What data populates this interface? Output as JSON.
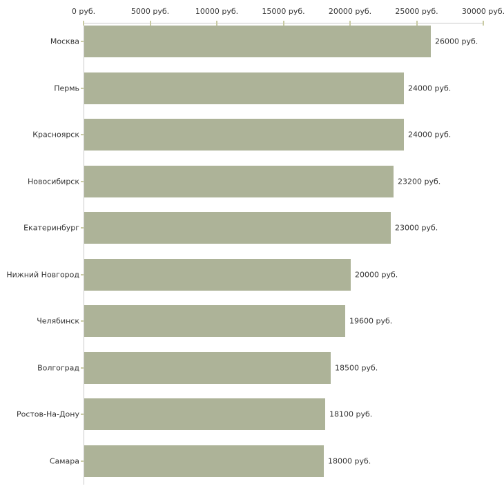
{
  "chart_data": {
    "type": "bar",
    "orientation": "horizontal",
    "title": "",
    "categories": [
      "Москва",
      "Пермь",
      "Красноярск",
      "Новосибирск",
      "Екатеринбург",
      "Нижний Новгород",
      "Челябинск",
      "Волгоград",
      "Ростов-На-Дону",
      "Самара"
    ],
    "values": [
      26000,
      24000,
      24000,
      23200,
      23000,
      20000,
      19600,
      18500,
      18100,
      18000
    ],
    "value_labels": [
      "26000 руб.",
      "24000 руб.",
      "24000 руб.",
      "23200 руб.",
      "23000 руб.",
      "20000 руб.",
      "19600 руб.",
      "18500 руб.",
      "18100 руб.",
      "18000 руб."
    ],
    "xlabel": "",
    "ylabel": "",
    "xlim": [
      0,
      30000
    ],
    "x_axis": {
      "position": "top",
      "tick_values": [
        0,
        5000,
        10000,
        15000,
        20000,
        25000,
        30000
      ],
      "tick_labels": [
        "0 руб.",
        "5000 руб.",
        "10000 руб.",
        "15000 руб.",
        "20000 руб.",
        "25000 руб.",
        "30000 руб."
      ]
    },
    "grid": false,
    "legend": false,
    "colors": {
      "bar": "#adb398",
      "axis_line": "#c8c8c8",
      "tick_mark": "#c9cba3",
      "text": "#333333",
      "background": "#ffffff"
    }
  }
}
